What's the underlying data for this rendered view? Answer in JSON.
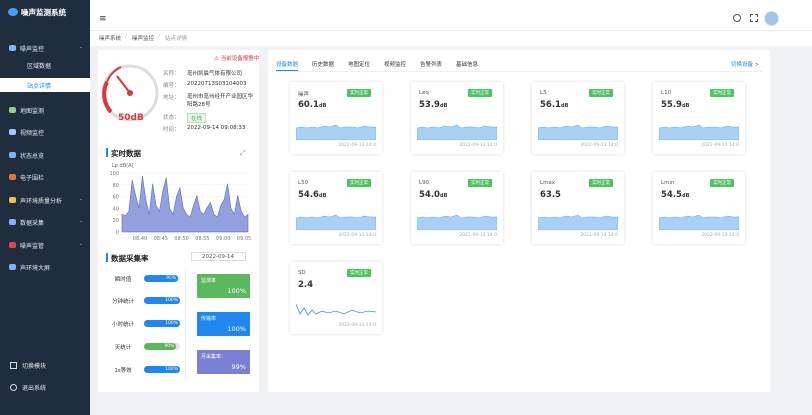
{
  "app": {
    "title": "噪声监测系统"
  },
  "menu": [
    "噪声监控",
    "地图监测",
    "视频监控",
    "状态总览",
    "电子围栏",
    "声环境质量分析",
    "数据采集",
    "噪声监管",
    "声环境大屏"
  ],
  "submenu": [
    "区域数据",
    "站点详情"
  ],
  "bottom_menu": [
    "切换模块",
    "退出系统"
  ],
  "breadcrumb": [
    "噪声系统",
    "噪声监控",
    "站点详情"
  ],
  "station": {
    "alert": "当前设备报警中",
    "gauge": "50dB",
    "fields": [
      {
        "label": "名称：",
        "value": "亳州凯晨气体有限公司"
      },
      {
        "label": "编号：",
        "value": "20220713S03104003"
      },
      {
        "label": "地址：",
        "value": "亳州市亳州经开产业园区华阳路28号"
      },
      {
        "label": "状态：",
        "value": "在线"
      },
      {
        "label": "时间：",
        "value": "2022-09-14 09:08:33"
      }
    ]
  },
  "realtime": {
    "title": "实时数据",
    "y_label": "Lp dB(A)",
    "ylim": [
      0,
      100
    ],
    "yticks": [
      0,
      20,
      40,
      60,
      80,
      100
    ],
    "x_labels": [
      "08:40",
      "08:45",
      "08:50",
      "08:55",
      "09:00",
      "09:05"
    ],
    "values": [
      30,
      28,
      35,
      88,
      62,
      40,
      95,
      55,
      30,
      82,
      45,
      35,
      70,
      92,
      40,
      30,
      60,
      75,
      40,
      30,
      25,
      45,
      62,
      35,
      30,
      42,
      50,
      30,
      25,
      45,
      55,
      82,
      40,
      30,
      62,
      35,
      25,
      30
    ]
  },
  "collection": {
    "title": "数据采集率",
    "date": "2022-09-14",
    "range": [
      0,
      100
    ],
    "rates": [
      {
        "label": "瞬时值",
        "value": 95,
        "value_label": "95%",
        "color": "#1e88f0"
      },
      {
        "label": "分钟统计",
        "value": 100,
        "value_label": "100%",
        "color": "#1e88f0"
      },
      {
        "label": "小时统计",
        "value": 100,
        "value_label": "100%",
        "color": "#1e88f0"
      },
      {
        "label": "天统计",
        "value": 90,
        "value_label": "90%",
        "color": "#5cb85c"
      },
      {
        "label": "1s等效",
        "value": 100,
        "value_label": "100%",
        "color": "#1e88f0"
      }
    ],
    "cards": [
      {
        "label": "监测率",
        "value": "100%",
        "color": "#5cb85c"
      },
      {
        "label": "传输率",
        "value": "100%",
        "color": "#1e88f0"
      },
      {
        "label": "月采集率：",
        "value": "99%",
        "color": "#7b7fd4"
      }
    ]
  },
  "tabs": [
    "设备数据",
    "历史数据",
    "地图定位",
    "视频监控",
    "告警列表",
    "基础信息"
  ],
  "switch_device": "切换设备 >",
  "cards": [
    {
      "name": "噪声",
      "status": "实时正常",
      "reading": "60.1",
      "unit": "dB",
      "time": "2022-09-13 14:0"
    },
    {
      "name": "Leq",
      "status": "实时正常",
      "reading": "53.9",
      "unit": "dB",
      "time": "2022-09-13 14:0"
    },
    {
      "name": "L5",
      "status": "实时正常",
      "reading": "56.1",
      "unit": "dB",
      "time": "2022-09-13 14:0"
    },
    {
      "name": "L10",
      "status": "实时正常",
      "reading": "55.9",
      "unit": "dB",
      "time": "2022-09-13 14:0"
    },
    {
      "name": "L50",
      "status": "实时正常",
      "reading": "54.6",
      "unit": "dB",
      "time": "2022-09-13 14:0"
    },
    {
      "name": "L90",
      "status": "实时正常",
      "reading": "54.0",
      "unit": "dB",
      "time": "2022-09-13 14:0"
    },
    {
      "name": "Lmax",
      "status": "实时正常",
      "reading": "63.5",
      "time": "2022-09-13 14:0"
    },
    {
      "name": "Lmin",
      "status": "实时正常",
      "reading": "54.5",
      "unit": "dB",
      "time": "2022-09-13 14:0"
    },
    {
      "name": "SD",
      "status": "实时正常",
      "reading": "2.4",
      "time": "2022-09-13 14:0"
    }
  ]
}
